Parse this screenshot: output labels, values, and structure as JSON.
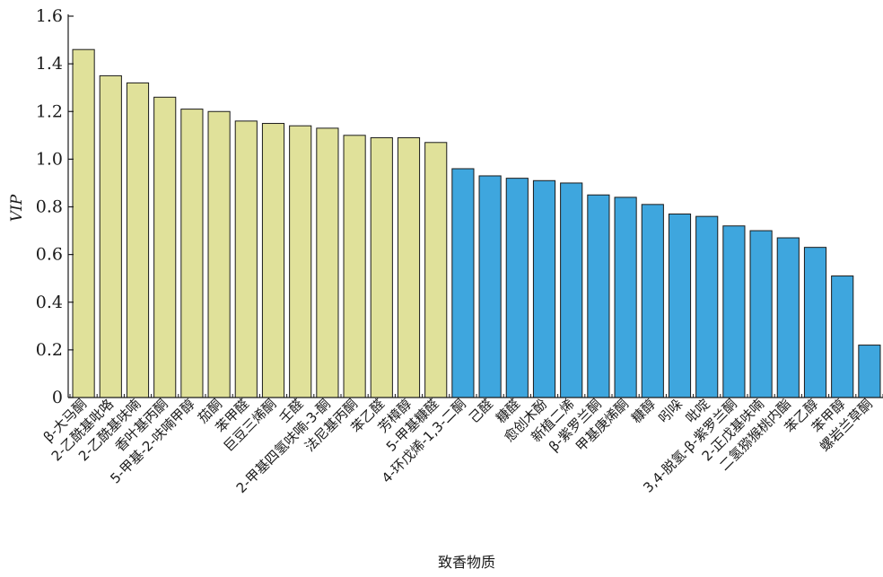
{
  "chart_data": {
    "type": "bar",
    "xlabel": "致香物质",
    "ylabel": "VIP",
    "ylim": [
      0,
      1.6
    ],
    "yticks": [
      "0",
      "0.2",
      "0.4",
      "0.6",
      "0.8",
      "1.0",
      "1.2",
      "1.4",
      "1.6"
    ],
    "grid": false,
    "categories": [
      "β-大马酮",
      "2-乙酰基吡咯",
      "2-乙酰基呋喃",
      "香叶基丙酮",
      "5-甲基-2-呋喃甲醇",
      "茄酮",
      "苯甲醛",
      "巨豆三烯酮",
      "壬醛",
      "2-甲基四氢呋喃-3-酮",
      "法尼基丙酮",
      "苯乙醛",
      "芳樟醇",
      "5-甲基糠醛",
      "4-环戊烯-1,3-二酮",
      "己醛",
      "糠醛",
      "愈创木酚",
      "新植二烯",
      "β-紫罗兰酮",
      "甲基庚烯酮",
      "糠醇",
      "吲哚",
      "吡啶",
      "3,4-脱氢-β-紫罗兰酮",
      "2-正戊基呋喃",
      "二氢猕猴桃内酯",
      "苯乙醇",
      "苯甲醇",
      "螺岩兰草酮"
    ],
    "values": [
      1.46,
      1.35,
      1.32,
      1.26,
      1.21,
      1.2,
      1.16,
      1.15,
      1.14,
      1.13,
      1.1,
      1.09,
      1.09,
      1.07,
      0.96,
      0.93,
      0.92,
      0.91,
      0.9,
      0.85,
      0.84,
      0.81,
      0.77,
      0.76,
      0.72,
      0.7,
      0.67,
      0.63,
      0.51,
      0.22
    ],
    "group_threshold": 1.0,
    "colors": {
      "high": "#e0e19a",
      "low": "#3ea6de",
      "edge": "#1a1a1a",
      "axis": "#1a1a1a"
    }
  }
}
